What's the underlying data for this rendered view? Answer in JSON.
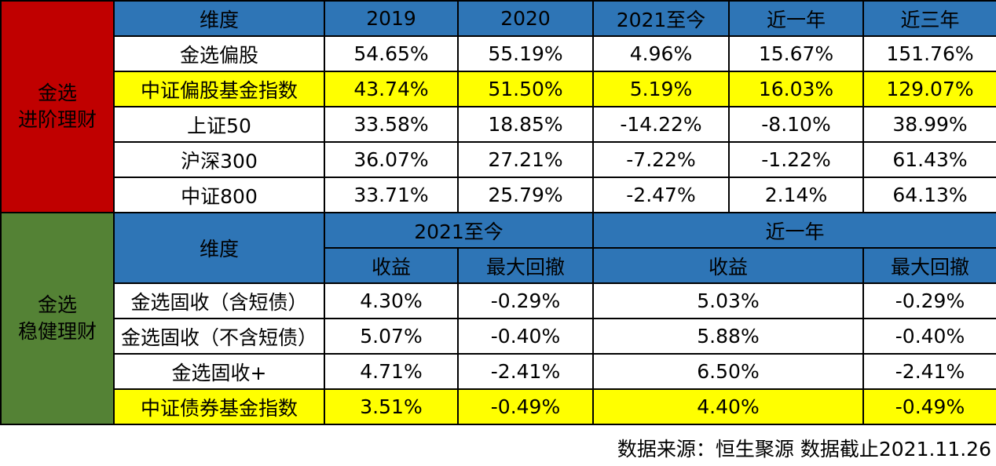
{
  "colors": {
    "side_top": "#c00000",
    "side_bottom": "#548235",
    "header_blue": "#2e75b6",
    "highlight": "#ffff00",
    "emphasis_red": "#e8141b"
  },
  "top": {
    "side_line1": "金选",
    "side_line2": "进阶理财",
    "headers": [
      "维度",
      "2019",
      "2020",
      "2021至今",
      "近一年",
      "近三年"
    ],
    "rows": [
      {
        "name": "金选偏股",
        "values": [
          "54.65%",
          "55.19%",
          "4.96%",
          "15.67%",
          "151.76%"
        ]
      },
      {
        "name": "中证偏股基金指数",
        "values": [
          "43.74%",
          "51.50%",
          "5.19%",
          "16.03%",
          "129.07%"
        ]
      },
      {
        "name": "上证50",
        "values": [
          "33.58%",
          "18.85%",
          "-14.22%",
          "-8.10%",
          "38.99%"
        ]
      },
      {
        "name": "沪深300",
        "values": [
          "36.07%",
          "27.21%",
          "-7.22%",
          "-1.22%",
          "61.43%"
        ]
      },
      {
        "name": "中证800",
        "values": [
          "33.71%",
          "25.79%",
          "-2.47%",
          "2.14%",
          "64.13%"
        ]
      }
    ]
  },
  "bottom": {
    "side_line1": "金选",
    "side_line2": "稳健理财",
    "dimension_header": "维度",
    "period_ytd": "2021至今",
    "period_1y": "近一年",
    "sub_return": "收益",
    "sub_drawdown": "最大回撤",
    "sub_return_1y": "收益",
    "sub_drawdown_1y": "最大回撤",
    "rows": [
      {
        "name": "金选固收（含短债）",
        "ytd_return": "4.30%",
        "ytd_drawdown": "-0.29%",
        "y1_return": "5.03%",
        "y1_drawdown": "-0.29%"
      },
      {
        "name": "金选固收（不含短债）",
        "ytd_return": "5.07%",
        "ytd_drawdown": "-0.40%",
        "y1_return": "5.88%",
        "y1_drawdown": "-0.40%"
      },
      {
        "name": "金选固收+",
        "ytd_return": "4.71%",
        "ytd_drawdown": "-2.41%",
        "y1_return": "6.50%",
        "y1_drawdown": "-2.41%"
      },
      {
        "name": "中证债券基金指数",
        "ytd_return": "3.51%",
        "ytd_drawdown": "-0.49%",
        "y1_return": "4.40%",
        "y1_drawdown": "-0.49%"
      }
    ]
  },
  "footer": "数据来源：恒生聚源 数据截止2021.11.26"
}
